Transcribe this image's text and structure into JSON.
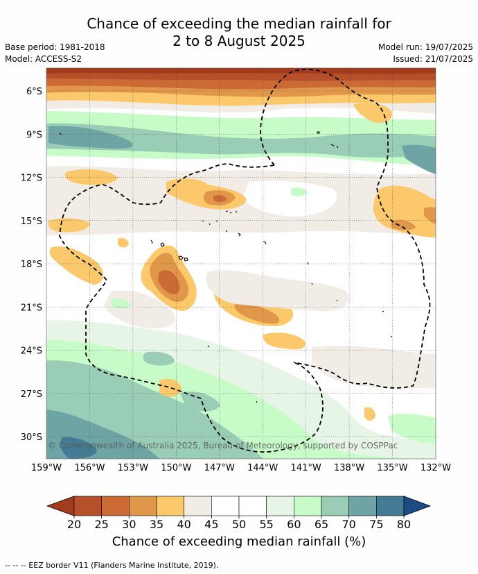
{
  "title_line1": "Chance of exceeding the median rainfall for",
  "title_line2": "2 to 8 August 2025",
  "base_period": "Base period: 1981-2018",
  "model": "Model: ACCESS-S2",
  "model_run": "Model run: 19/07/2025",
  "issued": "Issued: 21/07/2025",
  "copyright": "© Commonwealth of Australia 2025, Bureau of Meteorology, supported by COSPPac",
  "lat_labels": [
    "6°S",
    "9°S",
    "12°S",
    "15°S",
    "18°S",
    "21°S",
    "24°S",
    "27°S",
    "30°S"
  ],
  "lon_labels": [
    "159°W",
    "156°W",
    "153°W",
    "150°W",
    "147°W",
    "144°W",
    "141°W",
    "138°W",
    "135°W",
    "132°W"
  ],
  "colorbar": {
    "ticks": [
      "20",
      "25",
      "30",
      "35",
      "40",
      "45",
      "50",
      "55",
      "60",
      "65",
      "70",
      "75",
      "80"
    ],
    "colors": [
      "#a23c1c",
      "#b6502a",
      "#cc6a36",
      "#e0974a",
      "#fcc86c",
      "#f1ece6",
      "#ffffff",
      "#ffffff",
      "#e6f5e5",
      "#c7fcc8",
      "#99cdb6",
      "#6ea4a3",
      "#447c96",
      "#1b4d84"
    ],
    "label": "Chance of exceeding median rainfall (%)"
  },
  "footer": "--  --  -- EEZ border V11 (Flanders Marine Institute, 2019)."
}
